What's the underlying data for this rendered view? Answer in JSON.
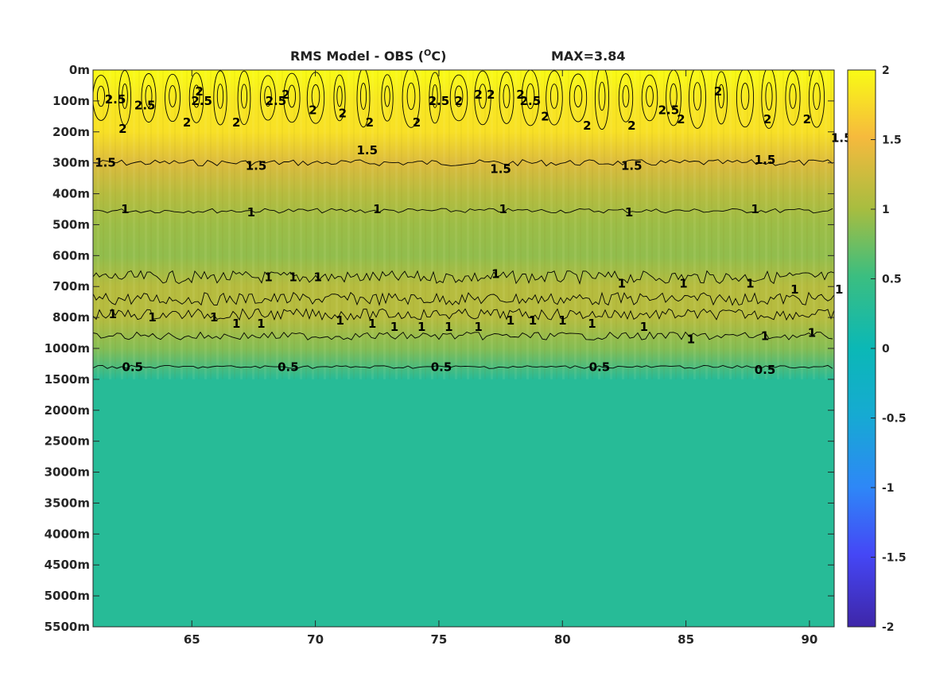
{
  "chart_data": {
    "type": "heatmap",
    "title": "RMS Model - OBS (",
    "title_unit_sup": "O",
    "title_unit_tail": "C)",
    "max_label": "MAX=3.84",
    "x_range": [
      61,
      91
    ],
    "x_ticks": [
      "65",
      "70",
      "75",
      "80",
      "85",
      "90"
    ],
    "x_tick_values": [
      65,
      70,
      75,
      80,
      85,
      90
    ],
    "y_tick_labels": [
      "0m",
      "100m",
      "200m",
      "300m",
      "400m",
      "500m",
      "600m",
      "700m",
      "800m",
      "1000m",
      "1500m",
      "2000m",
      "2500m",
      "3000m",
      "3500m",
      "4000m",
      "4500m",
      "5000m",
      "5500m"
    ],
    "y_scale": "index",
    "colorbar": {
      "colormap": "parula",
      "range": [
        -2,
        2
      ],
      "ticks": [
        "2",
        "1.5",
        "1",
        "0.5",
        "0",
        "-0.5",
        "-1",
        "-1.5",
        "-2"
      ],
      "tick_values": [
        2,
        1.5,
        1,
        0.5,
        0,
        -0.5,
        -1,
        -1.5,
        -2
      ]
    },
    "layers": [
      {
        "depth": "0m",
        "value": 2.1
      },
      {
        "depth": "100m",
        "value": 1.85
      },
      {
        "depth": "200m",
        "value": 1.8
      },
      {
        "depth": "300m",
        "value": 1.35
      },
      {
        "depth": "400m",
        "value": 1.1
      },
      {
        "depth": "500m",
        "value": 0.95
      },
      {
        "depth": "600m",
        "value": 0.9
      },
      {
        "depth": "700m",
        "value": 1.1
      },
      {
        "depth": "800m",
        "value": 1.1
      },
      {
        "depth": "1000m",
        "value": 0.85
      },
      {
        "depth": "1500m",
        "value": 0.3
      },
      {
        "depth": "5500m",
        "value": 0.3
      }
    ],
    "contours": [
      {
        "level": "2.5",
        "label_positions": [
          [
            61.9,
            0.95
          ],
          [
            63.1,
            1.15
          ],
          [
            65.4,
            1.0
          ],
          [
            68.4,
            1.0
          ],
          [
            75.0,
            1.0
          ],
          [
            78.7,
            1.0
          ],
          [
            84.3,
            1.3
          ]
        ]
      },
      {
        "level": "2",
        "label_positions": [
          [
            62.2,
            1.9
          ],
          [
            64.8,
            1.7
          ],
          [
            65.3,
            0.7
          ],
          [
            66.8,
            1.7
          ],
          [
            68.8,
            0.8
          ],
          [
            69.9,
            1.3
          ],
          [
            71.1,
            1.4
          ],
          [
            72.2,
            1.7
          ],
          [
            74.1,
            1.7
          ],
          [
            75.8,
            1.0
          ],
          [
            76.6,
            0.8
          ],
          [
            77.1,
            0.8
          ],
          [
            78.3,
            0.8
          ],
          [
            79.3,
            1.5
          ],
          [
            81.0,
            1.8
          ],
          [
            82.8,
            1.8
          ],
          [
            84.8,
            1.6
          ],
          [
            86.3,
            0.7
          ],
          [
            88.3,
            1.6
          ],
          [
            89.9,
            1.6
          ]
        ]
      },
      {
        "level": "1.5",
        "label_positions": [
          [
            61.5,
            3.0
          ],
          [
            67.6,
            3.1
          ],
          [
            72.1,
            2.6
          ],
          [
            77.5,
            3.2
          ],
          [
            82.8,
            3.1
          ],
          [
            88.2,
            2.9
          ],
          [
            91.3,
            2.2
          ]
        ]
      },
      {
        "level": "1",
        "label_positions": [
          [
            62.3,
            4.5
          ],
          [
            67.4,
            4.6
          ],
          [
            72.5,
            4.5
          ],
          [
            77.6,
            4.5
          ],
          [
            82.7,
            4.6
          ],
          [
            87.8,
            4.5
          ],
          [
            68.1,
            6.7
          ],
          [
            69.1,
            6.7
          ],
          [
            70.1,
            6.7
          ],
          [
            77.3,
            6.6
          ],
          [
            82.4,
            6.9
          ],
          [
            84.9,
            6.9
          ],
          [
            87.6,
            6.9
          ],
          [
            89.4,
            7.1
          ],
          [
            91.2,
            7.1
          ],
          [
            61.8,
            7.9
          ],
          [
            63.4,
            8.0
          ],
          [
            65.9,
            8.0
          ],
          [
            66.8,
            8.2
          ],
          [
            67.8,
            8.2
          ],
          [
            71.0,
            8.1
          ],
          [
            72.3,
            8.2
          ],
          [
            73.2,
            8.3
          ],
          [
            74.3,
            8.3
          ],
          [
            75.4,
            8.3
          ],
          [
            76.6,
            8.3
          ],
          [
            77.9,
            8.1
          ],
          [
            78.8,
            8.1
          ],
          [
            80.0,
            8.1
          ],
          [
            81.2,
            8.2
          ],
          [
            83.3,
            8.3
          ],
          [
            85.2,
            8.7
          ],
          [
            88.2,
            8.6
          ],
          [
            90.1,
            8.5
          ]
        ]
      },
      {
        "level": "0.5",
        "label_positions": [
          [
            62.6,
            9.6
          ],
          [
            68.9,
            9.6
          ],
          [
            75.1,
            9.6
          ],
          [
            81.5,
            9.6
          ],
          [
            88.2,
            9.7
          ]
        ]
      }
    ]
  }
}
